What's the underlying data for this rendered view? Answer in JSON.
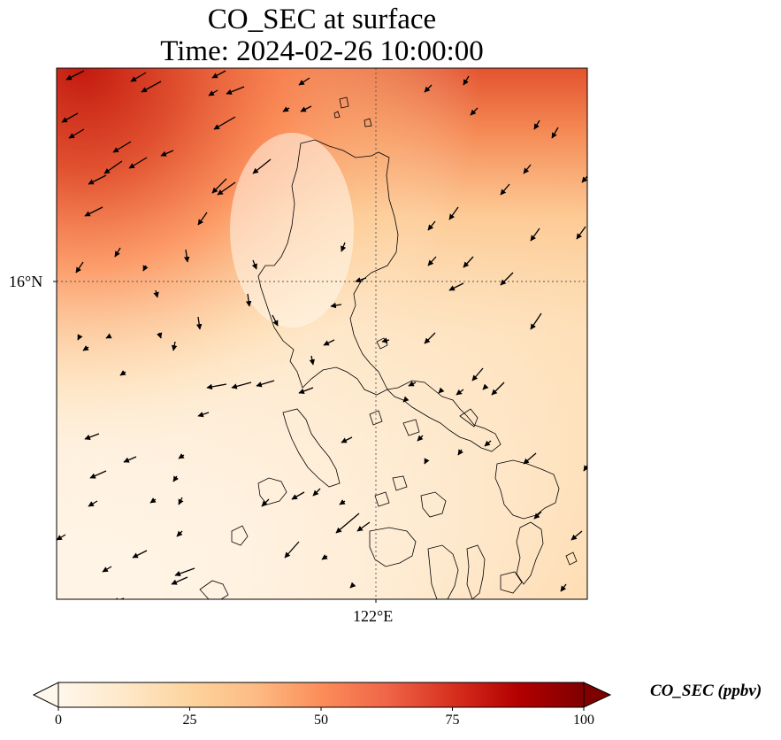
{
  "title": {
    "line1": "CO_SEC at surface",
    "line2": "Time: 2024-02-26 10:00:00"
  },
  "map": {
    "lat_tick_label": "16°N",
    "lon_tick_label": "122°E",
    "gridlines": true
  },
  "colorbar": {
    "label": "CO_SEC (ppbv)",
    "colormap": "OrRd",
    "min": 0,
    "max": 100,
    "extend": "both",
    "ticks": [
      "0",
      "25",
      "50",
      "75",
      "100"
    ],
    "colors": [
      "#fff7ec",
      "#fee8c8",
      "#fdd49e",
      "#fdbb84",
      "#fc8d59",
      "#ef6548",
      "#d7301f",
      "#b30000",
      "#7f0000"
    ]
  }
}
